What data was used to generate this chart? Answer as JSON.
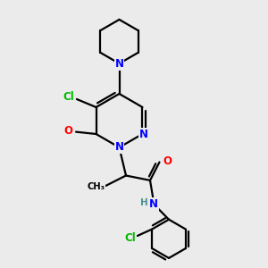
{
  "background_color": "#ebebeb",
  "bond_color": "#000000",
  "atom_colors": {
    "N": "#0000ff",
    "O": "#ff0000",
    "Cl": "#00bb00",
    "C": "#000000",
    "H": "#4a9090"
  },
  "figsize": [
    3.0,
    3.0
  ],
  "dpi": 100
}
